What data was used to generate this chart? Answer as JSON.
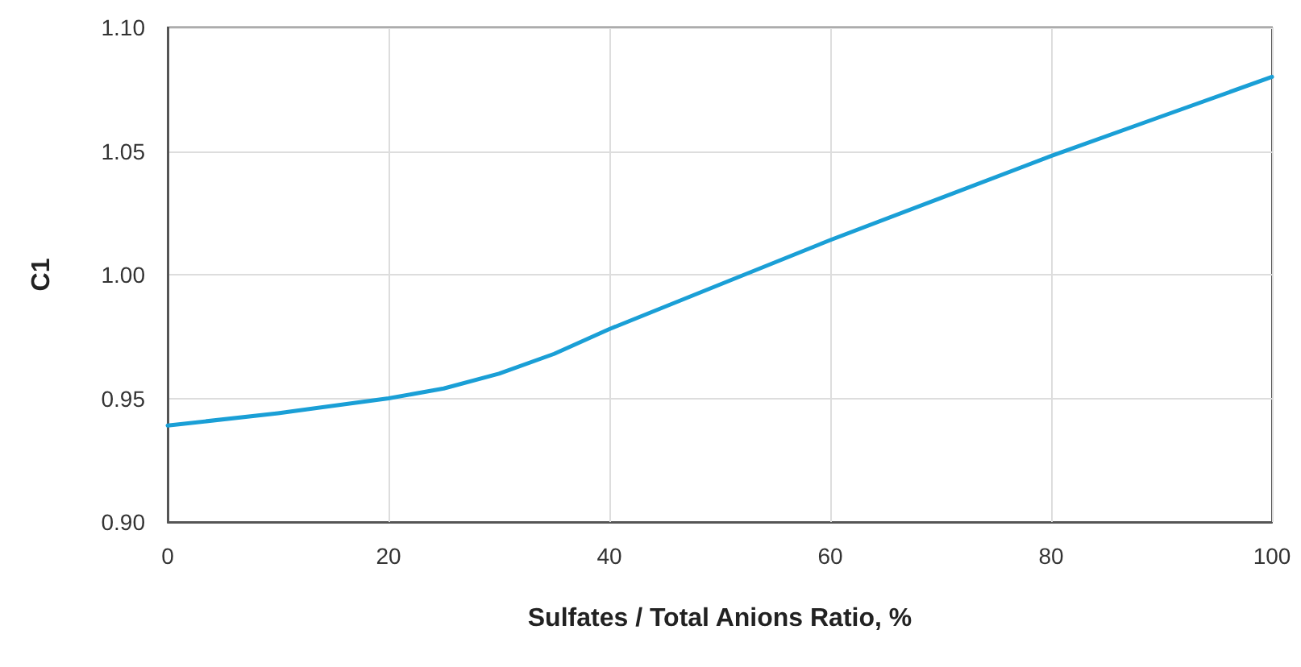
{
  "chart_data": {
    "type": "line",
    "xlabel": "Sulfates / Total Anions Ratio, %",
    "ylabel": "C1",
    "x": [
      0,
      10,
      20,
      25,
      30,
      35,
      40,
      50,
      60,
      70,
      80,
      90,
      100
    ],
    "series": [
      {
        "color": "#1a9fd6",
        "values": [
          0.939,
          0.944,
          0.95,
          0.954,
          0.96,
          0.968,
          0.978,
          0.996,
          1.014,
          1.031,
          1.048,
          1.064,
          1.08
        ]
      }
    ],
    "xlim": [
      0,
      100
    ],
    "xticks": [
      0,
      20,
      40,
      60,
      80,
      100
    ],
    "ylim": [
      0.9,
      1.1
    ],
    "yticks": [
      {
        "value": 0.9,
        "label": "0.90"
      },
      {
        "value": 0.95,
        "label": "0.95"
      },
      {
        "value": 1.0,
        "label": "1.00"
      },
      {
        "value": 1.05,
        "label": "1.05"
      },
      {
        "value": 1.1,
        "label": "1.10"
      }
    ],
    "grid": true,
    "marker": "none",
    "line_style": "solid"
  }
}
